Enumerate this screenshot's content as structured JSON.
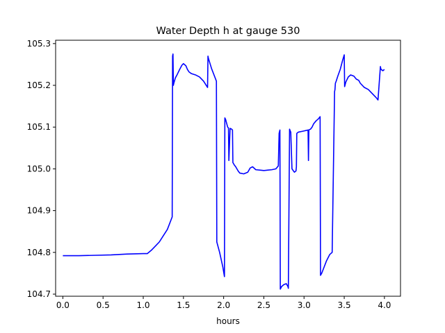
{
  "chart_data": {
    "type": "line",
    "title": "Water Depth h at gauge 530",
    "xlabel": "hours",
    "ylabel": "",
    "xlim": [
      -0.09,
      4.2
    ],
    "ylim": [
      104.695,
      105.308
    ],
    "grid": false,
    "x_ticks": [
      0.0,
      0.5,
      1.0,
      1.5,
      2.0,
      2.5,
      3.0,
      3.5,
      4.0
    ],
    "x_tick_labels": [
      "0.0",
      "0.5",
      "1.0",
      "1.5",
      "2.0",
      "2.5",
      "3.0",
      "3.5",
      "4.0"
    ],
    "y_ticks": [
      104.7,
      104.8,
      104.9,
      105.0,
      105.1,
      105.2,
      105.3
    ],
    "y_tick_labels": [
      "104.7",
      "104.8",
      "104.9",
      "105.0",
      "105.1",
      "105.2",
      "105.3"
    ],
    "series": [
      {
        "color": "#0000ff",
        "x": [
          0.0,
          0.2,
          0.4,
          0.6,
          0.8,
          1.0,
          1.05,
          1.1,
          1.15,
          1.2,
          1.25,
          1.3,
          1.33,
          1.36,
          1.365,
          1.37,
          1.375,
          1.38,
          1.4,
          1.42,
          1.45,
          1.48,
          1.5,
          1.53,
          1.55,
          1.57,
          1.6,
          1.65,
          1.7,
          1.75,
          1.8,
          1.805,
          1.81,
          1.85,
          1.88,
          1.91,
          1.915,
          1.95,
          1.99,
          2.01,
          2.015,
          2.025,
          2.05,
          2.06,
          2.065,
          2.08,
          2.1,
          2.11,
          2.115,
          2.125,
          2.13,
          2.15,
          2.18,
          2.2,
          2.25,
          2.3,
          2.33,
          2.36,
          2.4,
          2.45,
          2.5,
          2.55,
          2.6,
          2.65,
          2.68,
          2.69,
          2.7,
          2.705,
          2.72,
          2.75,
          2.78,
          2.8,
          2.805,
          2.82,
          2.83,
          2.835,
          2.85,
          2.88,
          2.9,
          2.905,
          2.91,
          2.93,
          2.98,
          3.05,
          3.055,
          3.06,
          3.065,
          3.08,
          3.1,
          3.12,
          3.15,
          3.18,
          3.2,
          3.205,
          3.22,
          3.25,
          3.28,
          3.32,
          3.35,
          3.38,
          3.385,
          3.39,
          3.4,
          3.42,
          3.45,
          3.48,
          3.5,
          3.505,
          3.52,
          3.55,
          3.58,
          3.62,
          3.65,
          3.68,
          3.7,
          3.75,
          3.8,
          3.85,
          3.9,
          3.92,
          3.95,
          3.955,
          3.96,
          3.98,
          4.0
        ],
        "values": [
          104.792,
          104.792,
          104.793,
          104.794,
          104.796,
          104.797,
          104.797,
          104.805,
          104.815,
          104.825,
          104.84,
          104.855,
          104.87,
          104.885,
          105.27,
          105.275,
          105.2,
          105.205,
          105.218,
          105.225,
          105.237,
          105.248,
          105.252,
          105.247,
          105.238,
          105.232,
          105.228,
          105.225,
          105.22,
          105.21,
          105.195,
          105.27,
          105.265,
          105.24,
          105.225,
          105.21,
          104.825,
          104.8,
          104.765,
          104.742,
          105.122,
          105.118,
          105.1,
          105.098,
          105.02,
          105.097,
          105.095,
          105.093,
          105.015,
          105.012,
          105.01,
          105.005,
          104.995,
          104.99,
          104.988,
          104.992,
          105.002,
          105.005,
          104.998,
          104.997,
          104.996,
          104.997,
          104.998,
          105.0,
          105.007,
          105.085,
          105.093,
          104.712,
          104.718,
          104.723,
          104.725,
          104.718,
          104.714,
          105.095,
          105.09,
          105.088,
          105.0,
          104.992,
          104.995,
          105.005,
          105.085,
          105.088,
          105.09,
          105.093,
          105.02,
          105.093,
          105.094,
          105.095,
          105.1,
          105.108,
          105.115,
          105.12,
          105.125,
          104.745,
          104.75,
          104.765,
          104.78,
          104.795,
          104.8,
          105.185,
          105.19,
          105.205,
          105.21,
          105.222,
          105.238,
          105.26,
          105.273,
          105.197,
          105.208,
          105.22,
          105.225,
          105.222,
          105.215,
          105.212,
          105.205,
          105.195,
          105.19,
          105.18,
          105.17,
          105.165,
          105.245,
          105.24,
          105.238,
          105.235,
          105.238
        ]
      }
    ]
  }
}
